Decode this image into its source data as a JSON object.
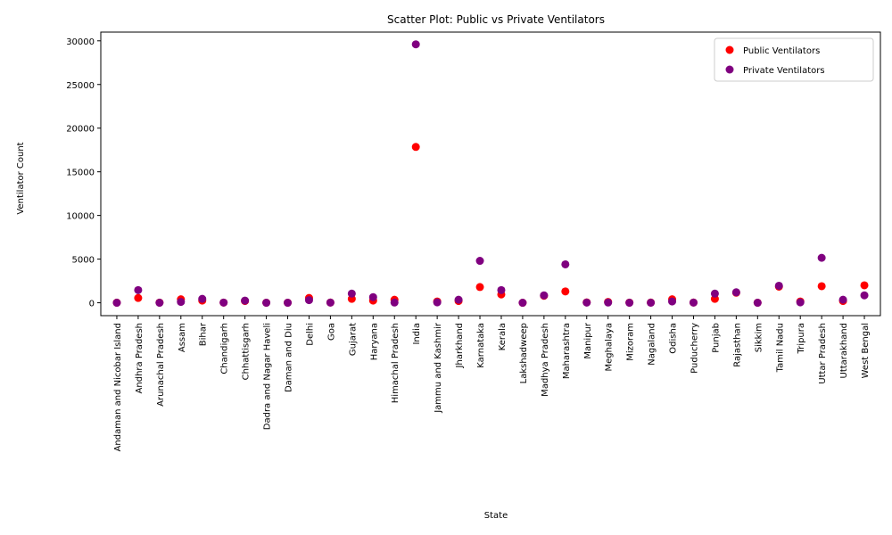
{
  "chart_data": {
    "type": "scatter",
    "title": "Scatter Plot: Public vs Private Ventilators",
    "xlabel": "State",
    "ylabel": "Ventilator Count",
    "categories": [
      "Andaman and Nicobar Island",
      "Andhra Pradesh",
      "Arunachal Pradesh",
      "Assam",
      "Bihar",
      "Chandigarh",
      "Chhattisgarh",
      "Dadra and Nagar Haveli",
      "Daman and Diu",
      "Delhi",
      "Goa",
      "Gujarat",
      "Haryana",
      "Himachal Pradesh",
      "India",
      "Jammu and Kashmir",
      "Jharkhand",
      "Karnataka",
      "Kerala",
      "Lakshadweep",
      "Madhya Pradesh",
      "Maharashtra",
      "Manipur",
      "Meghalaya",
      "Mizoram",
      "Nagaland",
      "Odisha",
      "Puducherry",
      "Punjab",
      "Rajasthan",
      "Sikkim",
      "Tamil Nadu",
      "Tripura",
      "Uttar Pradesh",
      "Uttarakhand",
      "West Bengal"
    ],
    "ylim": [
      -1475,
      31000
    ],
    "yticks": [
      0,
      5000,
      10000,
      15000,
      20000,
      25000,
      30000
    ],
    "legend_position": "top-right",
    "grid": false,
    "series": [
      {
        "name": "Public Ventilators",
        "color": "#ff0000",
        "values": [
          15,
          550,
          20,
          400,
          250,
          20,
          200,
          10,
          10,
          550,
          30,
          450,
          250,
          350,
          17850,
          150,
          200,
          1800,
          950,
          5,
          800,
          1300,
          50,
          100,
          20,
          30,
          400,
          30,
          450,
          1150,
          10,
          1850,
          150,
          1900,
          200,
          2000
        ]
      },
      {
        "name": "Private Ventilators",
        "color": "#800080",
        "values": [
          5,
          1450,
          5,
          100,
          450,
          20,
          250,
          5,
          5,
          300,
          20,
          1050,
          650,
          30,
          29600,
          50,
          350,
          4800,
          1450,
          2,
          850,
          4400,
          20,
          30,
          5,
          10,
          150,
          20,
          1050,
          1200,
          2,
          1950,
          50,
          5150,
          350,
          850
        ]
      }
    ]
  }
}
